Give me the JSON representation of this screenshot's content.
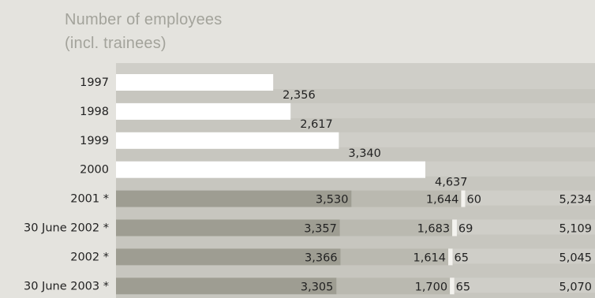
{
  "chart_data": {
    "type": "bar",
    "orientation": "horizontal",
    "stacked": true,
    "title": [
      "Number of employees",
      "(incl. trainees)"
    ],
    "categories": [
      "1997",
      "1998",
      "1999",
      "2000",
      "2001 *",
      "30 June 2002 *",
      "2002 *",
      "30 June 2003 *"
    ],
    "series": [
      {
        "values": [
          2356,
          2617,
          3340,
          4637,
          3530,
          3357,
          3366,
          3305
        ],
        "colors": [
          "#ffffff",
          "#ffffff",
          "#ffffff",
          "#ffffff",
          "#9e9d92",
          "#9e9d92",
          "#9e9d92",
          "#9e9d92"
        ]
      },
      {
        "values": [
          null,
          null,
          null,
          null,
          1644,
          1683,
          1614,
          1700
        ],
        "color": "#bab9b0"
      },
      {
        "values": [
          null,
          null,
          null,
          null,
          60,
          69,
          65,
          65
        ],
        "color": "#f4f3ef"
      }
    ],
    "totals": [
      null,
      null,
      null,
      null,
      5234,
      5109,
      5045,
      5070
    ],
    "value_labels": [
      [
        "2,356"
      ],
      [
        "2,617"
      ],
      [
        "3,340"
      ],
      [
        "4,637"
      ],
      [
        "3,530",
        "1,644",
        "60",
        "5,234"
      ],
      [
        "3,357",
        "1,683",
        "69",
        "5,109"
      ],
      [
        "3,366",
        "1,614",
        "65",
        "5,045"
      ],
      [
        "3,305",
        "1,700",
        "65",
        "5,070"
      ]
    ],
    "xlim": [
      0,
      7180
    ],
    "grid": false,
    "legend": "none",
    "colors": {
      "background": "#e4e3de",
      "panel": "#cfcec8",
      "panel_stripe": "#c7c6bf"
    }
  }
}
